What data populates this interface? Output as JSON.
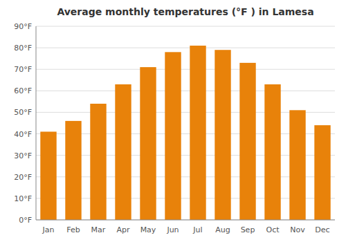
{
  "chart_data": {
    "type": "bar",
    "title": "Average monthly temperatures (°F ) in Lamesa",
    "categories": [
      "Jan",
      "Feb",
      "Mar",
      "Apr",
      "May",
      "Jun",
      "Jul",
      "Aug",
      "Sep",
      "Oct",
      "Nov",
      "Dec"
    ],
    "values": [
      41,
      46,
      54,
      63,
      71,
      78,
      81,
      79,
      73,
      63,
      51,
      44
    ],
    "color": "#e8820a",
    "ylim": [
      0,
      90
    ],
    "yticks": [
      {
        "value": 0,
        "label": "0°F"
      },
      {
        "value": 10,
        "label": "10°F"
      },
      {
        "value": 20,
        "label": "20°F"
      },
      {
        "value": 30,
        "label": "30°F"
      },
      {
        "value": 40,
        "label": "40°F"
      },
      {
        "value": 50,
        "label": "50°F"
      },
      {
        "value": 60,
        "label": "60°F"
      },
      {
        "value": 70,
        "label": "70°F"
      },
      {
        "value": 80,
        "label": "80°F"
      },
      {
        "value": 90,
        "label": "90°F"
      }
    ],
    "grid": true
  }
}
